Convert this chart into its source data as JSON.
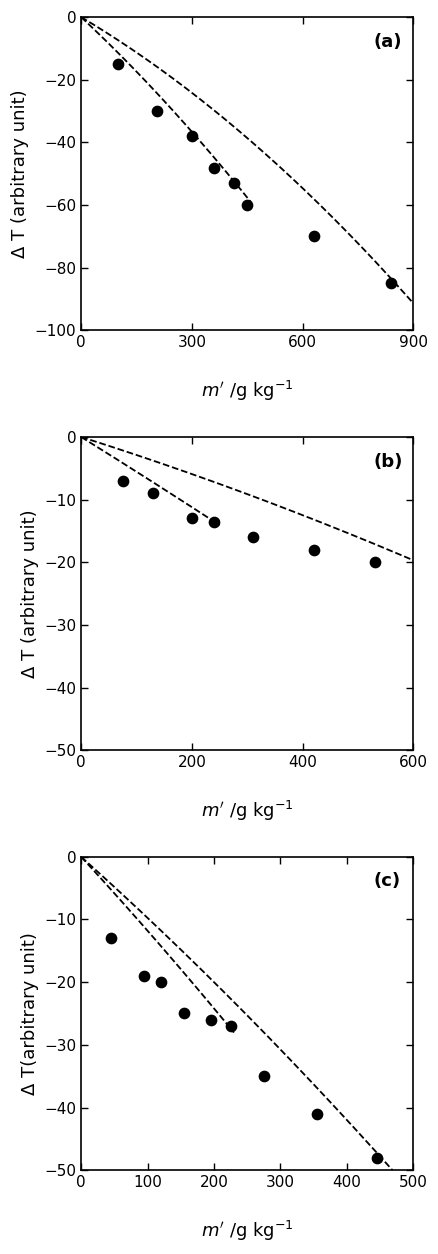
{
  "panels": [
    {
      "label": "(a)",
      "scatter_x": [
        100,
        205,
        300,
        360,
        415,
        450,
        630,
        840
      ],
      "scatter_y": [
        -15,
        -30,
        -38,
        -48,
        -53,
        -60,
        -70,
        -85
      ],
      "curve1_coeffs": [
        0.0,
        -0.11,
        -4e-05
      ],
      "curve2_coeffs": [
        0.0,
        -0.07,
        -3.5e-05
      ],
      "curve1_xmax": 460,
      "curve2_xmax": 900,
      "xlim": [
        0,
        900
      ],
      "ylim": [
        -100,
        0
      ],
      "xticks": [
        0,
        300,
        600,
        900
      ],
      "yticks": [
        0,
        -20,
        -40,
        -60,
        -80,
        -100
      ],
      "xlabel_parts": [
        "m",
        "' /g kg",
        "-1"
      ],
      "ylabel": "Δ T (arbitrary unit)"
    },
    {
      "label": "(b)",
      "scatter_x": [
        75,
        130,
        200,
        240,
        310,
        420,
        530
      ],
      "scatter_y": [
        -7.0,
        -9.0,
        -13.0,
        -13.5,
        -16.0,
        -18.0,
        -20.0
      ],
      "curve1_coeffs": [
        0.0,
        -0.055,
        -5e-06
      ],
      "curve2_coeffs": [
        0.0,
        -0.028,
        -8e-06
      ],
      "curve1_xmax": 250,
      "curve2_xmax": 600,
      "xlim": [
        0,
        600
      ],
      "ylim": [
        -50,
        0
      ],
      "xticks": [
        0,
        200,
        400,
        600
      ],
      "yticks": [
        0,
        -10,
        -20,
        -30,
        -40,
        -50
      ],
      "xlabel_parts": [
        "m",
        "' /g kg",
        "-1"
      ],
      "ylabel": "Δ T (arbitrary unit)"
    },
    {
      "label": "(c)",
      "scatter_x": [
        45,
        95,
        120,
        155,
        195,
        225,
        275,
        355,
        445
      ],
      "scatter_y": [
        -13,
        -19,
        -20,
        -25,
        -26,
        -27,
        -35,
        -41,
        -48
      ],
      "curve1_coeffs": [
        0.0,
        -0.115,
        -3e-05
      ],
      "curve2_coeffs": [
        0.0,
        -0.095,
        -2.5e-05
      ],
      "curve1_xmax": 230,
      "curve2_xmax": 480,
      "xlim": [
        0,
        500
      ],
      "ylim": [
        -50,
        0
      ],
      "xticks": [
        0,
        100,
        200,
        300,
        400,
        500
      ],
      "yticks": [
        0,
        -10,
        -20,
        -30,
        -40,
        -50
      ],
      "xlabel_parts": [
        "m",
        "' /g kg",
        "-1"
      ],
      "ylabel": "Δ T(arbitrary unit)"
    }
  ],
  "marker_color": "black",
  "marker_size": 55,
  "line_color": "black",
  "line_style": "--",
  "line_width": 1.3,
  "background_color": "white",
  "tick_fontsize": 11,
  "label_fontsize": 13,
  "panel_label_fontsize": 13
}
